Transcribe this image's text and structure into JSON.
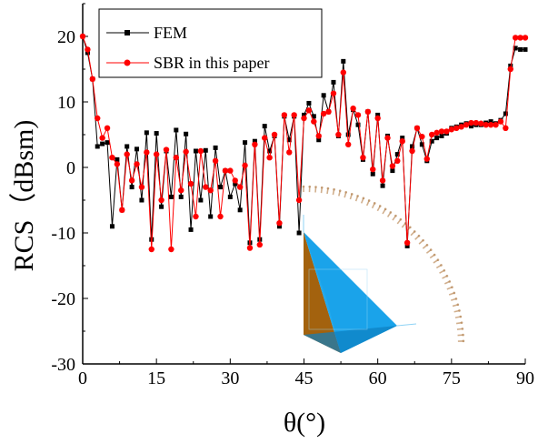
{
  "chart_data": {
    "type": "line",
    "xlabel": "θ(°)",
    "ylabel": "RCS（dBsm)",
    "xlim": [
      0,
      90
    ],
    "ylim": [
      -30,
      25
    ],
    "x_ticks": [
      "0",
      "15",
      "30",
      "45",
      "60",
      "75",
      "90"
    ],
    "y_ticks": [
      "-30",
      "-20",
      "-10",
      "0",
      "10",
      "20"
    ],
    "grid": false,
    "legend_position": "top-left",
    "series": [
      {
        "name": "FEM",
        "color": "#000000",
        "marker": "square",
        "x": [
          0,
          1,
          2,
          3,
          4,
          5,
          6,
          7,
          8,
          9,
          10,
          11,
          12,
          13,
          14,
          15,
          16,
          17,
          18,
          19,
          20,
          21,
          22,
          23,
          24,
          25,
          26,
          27,
          28,
          29,
          30,
          31,
          32,
          33,
          34,
          35,
          36,
          37,
          38,
          39,
          40,
          41,
          42,
          43,
          44,
          45,
          46,
          47,
          48,
          49,
          50,
          51,
          52,
          53,
          54,
          55,
          56,
          57,
          58,
          59,
          60,
          61,
          62,
          63,
          64,
          65,
          66,
          67,
          68,
          69,
          70,
          71,
          72,
          73,
          74,
          75,
          76,
          77,
          78,
          79,
          80,
          81,
          82,
          83,
          84,
          85,
          86,
          87,
          88,
          89,
          90
        ],
        "y": [
          20,
          17.5,
          13.5,
          3.2,
          3.6,
          3.8,
          -9,
          1.2,
          -6.5,
          3.2,
          -3,
          2.8,
          -5,
          5.3,
          -11,
          5.2,
          -6,
          2.5,
          -4.5,
          5.7,
          -4.5,
          5.1,
          -9.5,
          2.5,
          -5,
          2.6,
          -7.5,
          3,
          -3,
          -0.5,
          -4.5,
          -2.5,
          -6.5,
          3.8,
          -11.5,
          4,
          -11,
          6.3,
          2.5,
          4.8,
          -9,
          7.8,
          4.2,
          7.8,
          -10,
          8,
          9.8,
          7.8,
          4.2,
          11,
          8.5,
          13,
          4.8,
          16.2,
          5,
          8.8,
          6.5,
          1.2,
          8.5,
          -1,
          8,
          -2.8,
          4.8,
          -0.5,
          2,
          4.5,
          -12,
          3.2,
          6,
          3.5,
          1,
          4,
          4.5,
          4.8,
          5.2,
          6,
          6.2,
          6.5,
          6.7,
          6.3,
          6.5,
          6.5,
          6.8,
          7,
          6.7,
          7.2,
          8.2,
          15.5,
          18.2,
          18,
          18
        ]
      },
      {
        "name": "SBR in this paper",
        "color": "#ff0000",
        "marker": "circle",
        "x": [
          0,
          1,
          2,
          3,
          4,
          5,
          6,
          7,
          8,
          9,
          10,
          11,
          12,
          13,
          14,
          15,
          16,
          17,
          18,
          19,
          20,
          21,
          22,
          23,
          24,
          25,
          26,
          27,
          28,
          29,
          30,
          31,
          32,
          33,
          34,
          35,
          36,
          37,
          38,
          39,
          40,
          41,
          42,
          43,
          44,
          45,
          46,
          47,
          48,
          49,
          50,
          51,
          52,
          53,
          54,
          55,
          56,
          57,
          58,
          59,
          60,
          61,
          62,
          63,
          64,
          65,
          66,
          67,
          68,
          69,
          70,
          71,
          72,
          73,
          74,
          75,
          76,
          77,
          78,
          79,
          80,
          81,
          82,
          83,
          84,
          85,
          86,
          87,
          88,
          89,
          90
        ],
        "y": [
          20,
          18,
          13.5,
          7.5,
          4.5,
          6,
          1.5,
          0.5,
          -6.5,
          2,
          -2,
          0.5,
          -3,
          2.3,
          -12.5,
          2,
          -5,
          2.7,
          -12.5,
          1.5,
          -3.5,
          2.4,
          -2.5,
          -7.5,
          2.5,
          -3,
          -3.5,
          1,
          -7.5,
          -0.5,
          -0.5,
          -2,
          -3,
          0.3,
          -12.3,
          3.5,
          -11.8,
          4.5,
          1.5,
          5,
          -8.5,
          8,
          2.3,
          8,
          -5,
          7.5,
          8.7,
          7,
          4.8,
          8.2,
          8.5,
          11.3,
          5,
          14.5,
          3.5,
          9,
          8,
          1.5,
          8.5,
          -0.3,
          7.5,
          -2,
          4.5,
          0.2,
          1,
          4,
          -11.5,
          2.5,
          6,
          4.7,
          1.3,
          5,
          5.3,
          5.5,
          5.5,
          5.8,
          6,
          6.2,
          6.5,
          6.8,
          6.8,
          6.7,
          6.5,
          6.5,
          6.5,
          7,
          6,
          15,
          19.8,
          19.8,
          19.8
        ]
      }
    ]
  },
  "inset": {
    "description_icon": "tetrahedron-target-with-angle-arc",
    "colors": {
      "face_left": "#a0620d",
      "face_right": "#1a9fe8",
      "arc": "#d6b68c"
    }
  }
}
